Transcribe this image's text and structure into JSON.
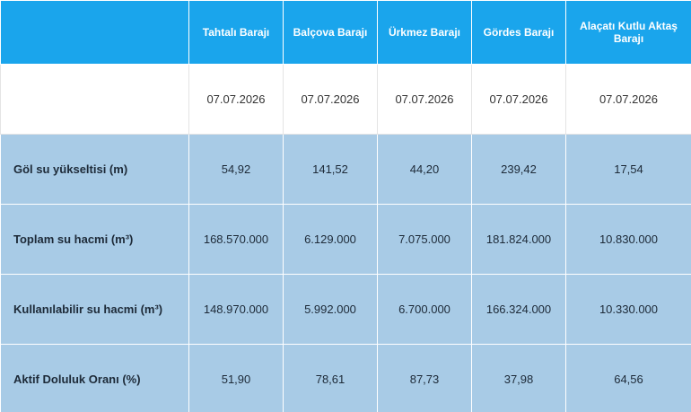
{
  "table": {
    "columns": [
      "Tahtalı Barajı",
      "Balçova Barajı",
      "Ürkmez Barajı",
      "Gördes Barajı",
      "Alaçatı Kutlu Aktaş Barajı"
    ],
    "dates": [
      "07.07.2026",
      "07.07.2026",
      "07.07.2026",
      "07.07.2026",
      "07.07.2026"
    ],
    "rows": [
      [
        "Göl su yükseltisi (m)",
        "54,92",
        "141,52",
        "44,20",
        "239,42",
        "17,54"
      ],
      [
        "Toplam su hacmi (m³)",
        "168.570.000",
        "6.129.000",
        "7.075.000",
        "181.824.000",
        "10.830.000"
      ],
      [
        "Kullanılabilir su hacmi (m³)",
        "148.970.000",
        "5.992.000",
        "6.700.000",
        "166.324.000",
        "10.330.000"
      ],
      [
        "Aktif Doluluk Oranı (%)",
        "51,90",
        "78,61",
        "87,73",
        "37,98",
        "64,56"
      ]
    ]
  }
}
